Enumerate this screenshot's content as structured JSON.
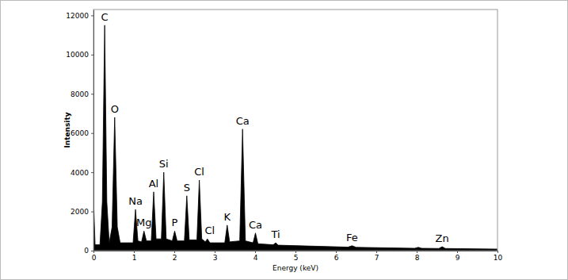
{
  "chart_data": {
    "type": "area",
    "x_label": "Energy (keV)",
    "y_label": "Intensity",
    "color": "#000000",
    "grid": false,
    "xlim": [
      0,
      10
    ],
    "xticks": [
      0,
      1,
      2,
      3,
      4,
      5,
      6,
      7,
      8,
      9,
      10
    ],
    "ylim": [
      0,
      12300
    ],
    "yticks": [
      0,
      2000,
      4000,
      6000,
      8000,
      10000,
      12000
    ],
    "x": [
      0,
      0.04,
      0.16,
      0.22,
      0.277,
      0.33,
      0.39,
      0.46,
      0.525,
      0.59,
      0.66,
      0.98,
      1.04,
      1.1,
      1.19,
      1.25,
      1.31,
      1.43,
      1.49,
      1.55,
      1.68,
      1.74,
      1.8,
      1.95,
      2.01,
      2.07,
      2.25,
      2.31,
      2.37,
      2.56,
      2.62,
      2.68,
      2.77,
      2.82,
      2.88,
      3.25,
      3.31,
      3.37,
      3.62,
      3.69,
      3.76,
      3.95,
      4.01,
      4.07,
      4.45,
      4.51,
      4.57,
      6.3,
      6.4,
      6.5,
      7.95,
      8.04,
      8.12,
      8.55,
      8.63,
      8.71,
      10
    ],
    "values": [
      2700,
      300,
      300,
      2500,
      11500,
      2500,
      400,
      1200,
      6800,
      1200,
      400,
      400,
      2100,
      500,
      450,
      1000,
      500,
      500,
      3000,
      600,
      600,
      4000,
      600,
      500,
      1000,
      500,
      500,
      2800,
      550,
      550,
      3600,
      600,
      450,
      600,
      400,
      400,
      1300,
      450,
      500,
      6200,
      500,
      400,
      900,
      350,
      300,
      400,
      280,
      180,
      250,
      170,
      120,
      170,
      120,
      110,
      200,
      110,
      80
    ],
    "annotations": [
      {
        "text": "C",
        "x": 0.277,
        "y": 11750
      },
      {
        "text": "O",
        "x": 0.525,
        "y": 7050
      },
      {
        "text": "Na",
        "x": 1.04,
        "y": 2350
      },
      {
        "text": "Mg",
        "x": 1.25,
        "y": 1250
      },
      {
        "text": "Al",
        "x": 1.49,
        "y": 3250
      },
      {
        "text": "Si",
        "x": 1.74,
        "y": 4250
      },
      {
        "text": "P",
        "x": 2.01,
        "y": 1250
      },
      {
        "text": "S",
        "x": 2.31,
        "y": 3050
      },
      {
        "text": "Cl",
        "x": 2.62,
        "y": 3850
      },
      {
        "text": "Cl",
        "x": 2.88,
        "y": 850
      },
      {
        "text": "K",
        "x": 3.31,
        "y": 1550
      },
      {
        "text": "Ca",
        "x": 3.69,
        "y": 6450
      },
      {
        "text": "Ca",
        "x": 4.01,
        "y": 1150
      },
      {
        "text": "Ti",
        "x": 4.51,
        "y": 650
      },
      {
        "text": "Fe",
        "x": 6.4,
        "y": 500
      },
      {
        "text": "Zn",
        "x": 8.63,
        "y": 450
      }
    ]
  }
}
